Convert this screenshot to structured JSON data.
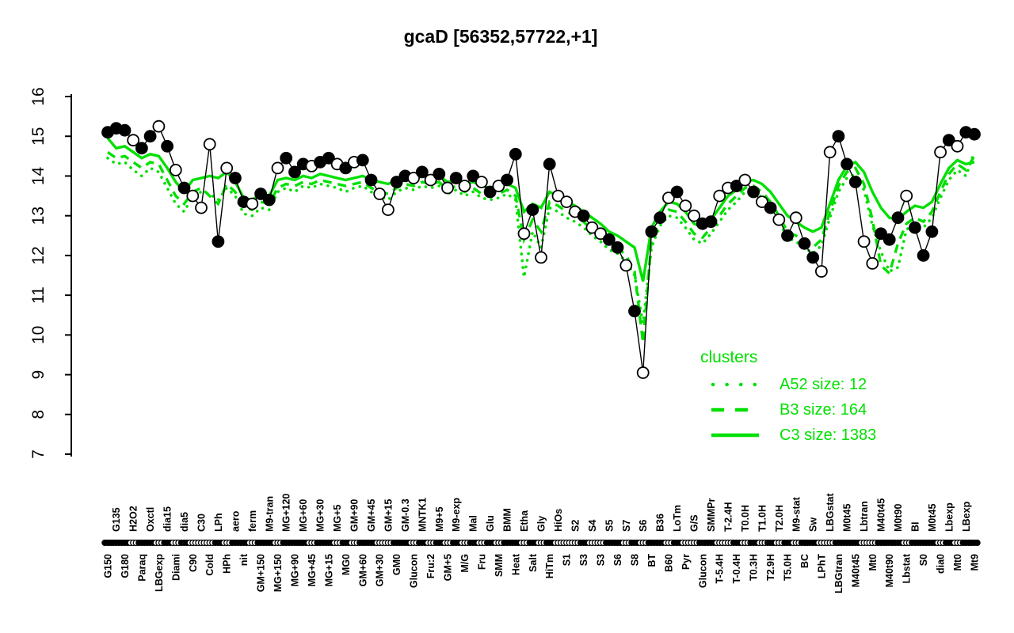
{
  "title": "gcaD [56352,57722,+1]",
  "colors": {
    "cluster_green": "#00e000",
    "series_black": "#000000",
    "background": "#ffffff"
  },
  "legend": {
    "title": "clusters",
    "items": [
      {
        "label": "A52 size: 12",
        "style": "dotted"
      },
      {
        "label": "B3 size: 164",
        "style": "dashed"
      },
      {
        "label": "C3 size: 1383",
        "style": "solid"
      }
    ]
  },
  "chart_data": {
    "type": "line",
    "title": "gcaD [56352,57722,+1]",
    "xlabel": "",
    "ylabel": "",
    "ylim": [
      7,
      16
    ],
    "y_ticks": [
      7,
      8,
      9,
      10,
      11,
      12,
      13,
      14,
      15,
      16
    ],
    "grid": "off",
    "legend_position": "inside-right",
    "x_label_layout": "alternating-bottom-top, rotated 90",
    "categories": [
      "G150",
      "G135",
      "G180",
      "H2O2",
      "Paraq",
      "Oxctl",
      "LBGexp",
      "dia15",
      "Diami",
      "dia5",
      "C90",
      "C30",
      "Cold",
      "LPh",
      "HPh",
      "aero",
      "nit",
      "ferm",
      "GM+150",
      "M9-tran",
      "MG+150",
      "MG+120",
      "MG+90",
      "MG+60",
      "MG+45",
      "MG+30",
      "MG+15",
      "MG+5",
      "MG0",
      "GM+90",
      "GM+60",
      "GM+45",
      "GM+30",
      "GM+15",
      "GM0",
      "GM-0.3",
      "Glucon",
      "MNTK1",
      "Fru:2",
      "M9+5",
      "GM+5",
      "M9-exp",
      "M/G",
      "Mal",
      "Fru",
      "Glu",
      "SMM",
      "BMM",
      "Heat",
      "Etha",
      "Salt",
      "Gly",
      "HiTm",
      "HiOs",
      "S1",
      "S2",
      "S3",
      "S4",
      "S3",
      "S5",
      "S6",
      "S7",
      "S8",
      "S6",
      "BT",
      "B36",
      "B60",
      "LoTm",
      "Pyr",
      "G/S",
      "Glucon",
      "SMMPr",
      "T-5.4H",
      "T-2.4H",
      "T-0.4H",
      "T0.0H",
      "T0.3H",
      "T1.0H",
      "T2.9H",
      "T2.0H",
      "T5.0H",
      "M9-stat",
      "BC",
      "Sw",
      "LPhT",
      "LBGstat",
      "LBGtran",
      "M0t45",
      "M40t45",
      "Lbtran",
      "Mt0",
      "M40t45",
      "M40t90",
      "M0t90",
      "Lbstat",
      "BI",
      "S0",
      "M0t45",
      "dia0",
      "Lbexp",
      "Mt0",
      "LBexp",
      "Mt9"
    ],
    "point_symbol": [
      "f",
      "f",
      "f",
      "o",
      "f",
      "f",
      "o",
      "f",
      "o",
      "f",
      "o",
      "o",
      "o",
      "f",
      "o",
      "f",
      "f",
      "o",
      "f",
      "f",
      "o",
      "f",
      "f",
      "f",
      "o",
      "f",
      "f",
      "o",
      "f",
      "o",
      "f",
      "f",
      "o",
      "o",
      "f",
      "f",
      "o",
      "f",
      "o",
      "f",
      "o",
      "f",
      "o",
      "f",
      "o",
      "f",
      "o",
      "f",
      "f",
      "o",
      "f",
      "o",
      "f",
      "o",
      "o",
      "o",
      "f",
      "o",
      "o",
      "f",
      "f",
      "o",
      "f",
      "o",
      "f",
      "f",
      "o",
      "f",
      "o",
      "o",
      "f",
      "f",
      "o",
      "o",
      "f",
      "o",
      "f",
      "o",
      "f",
      "o",
      "f",
      "o",
      "f",
      "f",
      "o",
      "o",
      "f",
      "f",
      "f",
      "o",
      "o",
      "f",
      "f",
      "f",
      "o",
      "f",
      "f",
      "f",
      "o",
      "f",
      "o",
      "f",
      "f"
    ],
    "series": [
      {
        "name": "gcaD expression",
        "color": "#000000",
        "style": "points-line",
        "values": [
          15.1,
          15.2,
          15.15,
          14.9,
          14.7,
          15.0,
          15.25,
          14.75,
          14.15,
          13.7,
          13.5,
          13.2,
          14.8,
          12.35,
          14.2,
          13.95,
          13.35,
          13.3,
          13.55,
          13.4,
          14.2,
          14.45,
          14.1,
          14.3,
          14.25,
          14.35,
          14.45,
          14.3,
          14.2,
          14.35,
          14.4,
          13.9,
          13.55,
          13.15,
          13.85,
          14.0,
          13.95,
          14.1,
          13.9,
          14.05,
          13.7,
          13.95,
          13.75,
          14.0,
          13.85,
          13.6,
          13.75,
          13.9,
          14.55,
          12.55,
          13.15,
          11.95,
          14.3,
          13.5,
          13.35,
          13.1,
          13.0,
          12.7,
          12.55,
          12.4,
          12.2,
          11.75,
          10.6,
          9.05,
          12.6,
          12.95,
          13.45,
          13.6,
          13.25,
          13.0,
          12.8,
          12.85,
          13.5,
          13.7,
          13.75,
          13.9,
          13.6,
          13.35,
          13.2,
          12.9,
          12.5,
          12.95,
          12.3,
          11.95,
          11.6,
          14.6,
          15.0,
          14.3,
          13.85,
          12.35,
          11.8,
          12.55,
          12.4,
          12.95,
          13.5,
          12.7,
          12.0,
          12.6,
          14.6,
          14.9,
          14.75,
          15.1,
          15.05
        ]
      },
      {
        "name": "A52 size: 12",
        "color": "#00e000",
        "style": "dotted",
        "values": [
          14.45,
          14.3,
          14.35,
          14.15,
          14.0,
          14.2,
          14.1,
          13.7,
          13.3,
          13.1,
          13.5,
          13.6,
          13.55,
          13.4,
          13.7,
          13.5,
          13.05,
          13.0,
          13.2,
          13.15,
          13.6,
          13.7,
          13.6,
          13.75,
          13.7,
          13.8,
          13.75,
          13.7,
          13.6,
          13.7,
          13.75,
          13.6,
          13.5,
          13.4,
          13.6,
          13.7,
          13.65,
          13.75,
          13.7,
          13.75,
          13.55,
          13.65,
          13.5,
          13.6,
          13.45,
          13.4,
          13.45,
          13.55,
          13.4,
          11.45,
          12.6,
          12.2,
          13.2,
          13.1,
          12.95,
          12.85,
          12.7,
          12.5,
          12.35,
          12.15,
          12.05,
          11.85,
          11.5,
          10.3,
          12.2,
          12.75,
          13.0,
          12.95,
          12.7,
          12.4,
          12.3,
          12.55,
          12.85,
          13.15,
          13.35,
          13.6,
          13.65,
          13.45,
          13.2,
          12.85,
          12.45,
          12.35,
          12.2,
          12.05,
          12.25,
          12.95,
          13.6,
          13.95,
          14.05,
          13.65,
          12.75,
          12.1,
          11.6,
          11.7,
          12.65,
          12.8,
          12.7,
          12.95,
          13.45,
          13.9,
          14.15,
          14.0,
          14.6
        ]
      },
      {
        "name": "B3 size: 164",
        "color": "#00e000",
        "style": "dashed",
        "values": [
          14.6,
          14.45,
          14.5,
          14.35,
          14.2,
          14.35,
          14.3,
          13.9,
          13.5,
          13.3,
          13.6,
          13.7,
          13.5,
          13.3,
          13.8,
          13.6,
          13.2,
          13.15,
          13.35,
          13.3,
          13.7,
          13.8,
          13.75,
          13.85,
          13.8,
          13.9,
          13.85,
          13.8,
          13.75,
          13.8,
          13.85,
          13.7,
          13.6,
          13.55,
          13.7,
          13.8,
          13.75,
          13.85,
          13.8,
          13.85,
          13.65,
          13.75,
          13.6,
          13.7,
          13.55,
          13.5,
          13.55,
          13.65,
          13.5,
          12.4,
          12.9,
          12.6,
          13.35,
          13.25,
          13.1,
          13.0,
          12.85,
          12.65,
          12.5,
          12.3,
          12.2,
          12.0,
          11.6,
          9.8,
          12.4,
          12.9,
          13.15,
          13.1,
          12.85,
          12.55,
          12.45,
          12.7,
          13.0,
          13.3,
          13.5,
          13.7,
          13.75,
          13.6,
          13.35,
          13.0,
          12.6,
          12.5,
          12.35,
          12.2,
          12.4,
          13.1,
          13.75,
          14.1,
          14.2,
          13.8,
          12.9,
          11.75,
          11.55,
          12.3,
          12.8,
          12.95,
          12.85,
          13.1,
          13.6,
          14.05,
          14.3,
          14.15,
          14.5
        ]
      },
      {
        "name": "C3 size: 1383",
        "color": "#00e000",
        "style": "solid",
        "values": [
          14.95,
          14.7,
          14.75,
          14.6,
          14.45,
          14.55,
          14.5,
          14.2,
          13.85,
          13.6,
          13.9,
          13.95,
          14.0,
          13.95,
          14.1,
          13.85,
          13.45,
          13.4,
          13.55,
          13.5,
          13.9,
          13.95,
          13.9,
          14.0,
          13.95,
          14.05,
          14.0,
          13.95,
          13.9,
          13.95,
          14.0,
          13.9,
          13.85,
          13.8,
          13.9,
          13.95,
          13.9,
          14.0,
          13.95,
          14.0,
          13.85,
          13.9,
          13.8,
          13.85,
          13.75,
          13.7,
          13.75,
          13.8,
          13.7,
          13.1,
          13.3,
          13.2,
          13.6,
          13.5,
          13.35,
          13.25,
          13.1,
          12.95,
          12.8,
          12.6,
          12.5,
          12.35,
          12.2,
          11.35,
          12.7,
          13.1,
          13.35,
          13.3,
          13.1,
          12.8,
          12.7,
          12.9,
          13.2,
          13.5,
          13.65,
          13.85,
          13.9,
          13.8,
          13.6,
          13.3,
          13.0,
          12.85,
          12.7,
          12.6,
          12.7,
          13.3,
          13.9,
          14.25,
          14.35,
          14.1,
          13.6,
          13.2,
          12.95,
          12.9,
          13.1,
          13.25,
          13.2,
          13.35,
          13.8,
          14.2,
          14.4,
          14.3,
          14.35
        ]
      }
    ]
  }
}
